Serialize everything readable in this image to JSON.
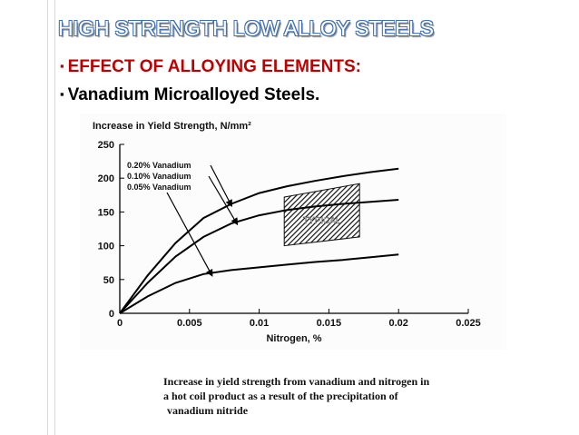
{
  "slide": {
    "title": "HIGH STRENGTH LOW ALLOY STEELS",
    "bullets": [
      "EFFECT OF ALLOYING ELEMENTS:",
      "Vanadium Microalloyed Steels."
    ],
    "bullet_glyph": "▪",
    "caption_lines": [
      "Increase in yield strength from vanadium and nitrogen in",
      "a hot coil product as a result of the precipitation of",
      "vanadium nitride"
    ]
  },
  "colors": {
    "title_fill": "#ffffff",
    "title_outline": "#3f6fb3",
    "accent_red": "#c00000",
    "ink": "#000000"
  },
  "chart_data": {
    "type": "line",
    "title": "Increase in Yield Strength, N/mm²",
    "xlabel": "Nitrogen, %",
    "ylabel": "",
    "xlim": [
      0,
      0.025
    ],
    "ylim": [
      0,
      250
    ],
    "x_ticks": [
      0,
      0.005,
      0.01,
      0.015,
      0.02,
      0.025
    ],
    "x_tick_labels": [
      "0",
      "0.005",
      "0.01",
      "0.015",
      "0.02",
      "0.025"
    ],
    "y_ticks": [
      0,
      50,
      100,
      150,
      200,
      250
    ],
    "y_tick_labels": [
      "0",
      "50",
      "100",
      "150",
      "200",
      "250"
    ],
    "grid": false,
    "series": [
      {
        "name": "0.20% Vanadium",
        "x": [
          0,
          0.002,
          0.004,
          0.006,
          0.008,
          0.01,
          0.012,
          0.014,
          0.016,
          0.018,
          0.02
        ],
        "y": [
          0,
          56,
          104,
          141,
          162,
          178,
          188,
          196,
          203,
          209,
          214
        ]
      },
      {
        "name": "0.10% Vanadium",
        "x": [
          0,
          0.002,
          0.004,
          0.006,
          0.008,
          0.01,
          0.012,
          0.014,
          0.016,
          0.018,
          0.02
        ],
        "y": [
          0,
          45,
          84,
          113,
          133,
          145,
          153,
          158,
          162,
          165,
          168
        ]
      },
      {
        "name": "0.05% Vanadium",
        "x": [
          0,
          0.002,
          0.004,
          0.006,
          0.008,
          0.01,
          0.012,
          0.014,
          0.016,
          0.018,
          0.02
        ],
        "y": [
          0,
          25,
          45,
          58,
          64,
          68,
          72,
          76,
          79,
          83,
          87
        ]
      }
    ],
    "region": {
      "label": "TYPICAL",
      "x": [
        0.0118,
        0.0172
      ],
      "y_bottom": [
        100,
        113
      ],
      "y_top": [
        172,
        192
      ]
    }
  }
}
